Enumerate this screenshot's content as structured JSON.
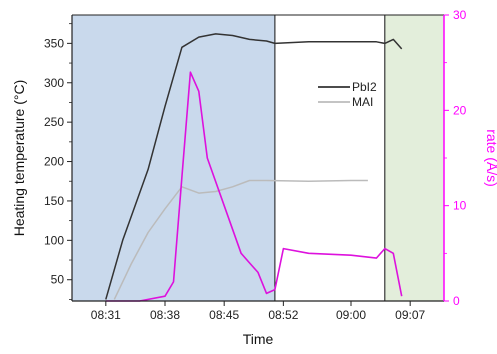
{
  "chart_data": {
    "type": "line",
    "title": "",
    "xlabel": "Time",
    "ylabel_left": "Heating temperature (°C)",
    "ylabel_right": "rate (Å/s)",
    "x_ticks": [
      "08:31",
      "08:38",
      "08:45",
      "08:52",
      "09:00",
      "09:07"
    ],
    "y_left_ticks": [
      50,
      100,
      150,
      200,
      250,
      300,
      350
    ],
    "y_right_ticks": [
      0,
      10,
      20,
      30
    ],
    "xlim": [
      "08:27",
      "09:11"
    ],
    "ylim_left": [
      23,
      386
    ],
    "ylim_right": [
      0,
      30
    ],
    "grid": false,
    "legend_position": "center-right (inside middle region)",
    "shaded_regions": [
      {
        "x_start": "08:27",
        "x_end": "08:51",
        "color": "#c9d9ec"
      },
      {
        "x_start": "09:04",
        "x_end": "09:11",
        "color": "#e3eedb"
      }
    ],
    "series": [
      {
        "name": "PbI2",
        "axis": "left",
        "color": "#333333",
        "x": [
          "08:31",
          "08:33",
          "08:36",
          "08:38",
          "08:40",
          "08:42",
          "08:44",
          "08:46",
          "08:48",
          "08:50",
          "08:51",
          "08:55",
          "09:00",
          "09:03",
          "09:04",
          "09:05",
          "09:06"
        ],
        "y": [
          25,
          100,
          190,
          270,
          345,
          358,
          362,
          360,
          355,
          353,
          350,
          352,
          352,
          352,
          350,
          355,
          343
        ]
      },
      {
        "name": "MAI",
        "axis": "left",
        "color": "#bbbbbb",
        "x": [
          "08:32",
          "08:34",
          "08:36",
          "08:38",
          "08:40",
          "08:42",
          "08:44",
          "08:46",
          "08:48",
          "08:50",
          "08:55",
          "09:00",
          "09:02"
        ],
        "y": [
          25,
          70,
          110,
          140,
          168,
          160,
          162,
          168,
          176,
          176,
          175,
          176,
          176
        ]
      },
      {
        "name": "",
        "axis": "right",
        "color": "#dd11dd",
        "x": [
          "08:31",
          "08:35",
          "08:38",
          "08:39",
          "08:40",
          "08:41",
          "08:42",
          "08:43",
          "08:45",
          "08:47",
          "08:48",
          "08:49",
          "08:50",
          "08:51",
          "08:52",
          "08:55",
          "09:00",
          "09:03",
          "09:04",
          "09:05",
          "09:06"
        ],
        "y": [
          0,
          0,
          0.5,
          2,
          13,
          24,
          22,
          15,
          10,
          5,
          4,
          3,
          0.8,
          1.2,
          5.5,
          5.0,
          4.8,
          4.5,
          5.5,
          5.0,
          0.5
        ]
      }
    ]
  }
}
